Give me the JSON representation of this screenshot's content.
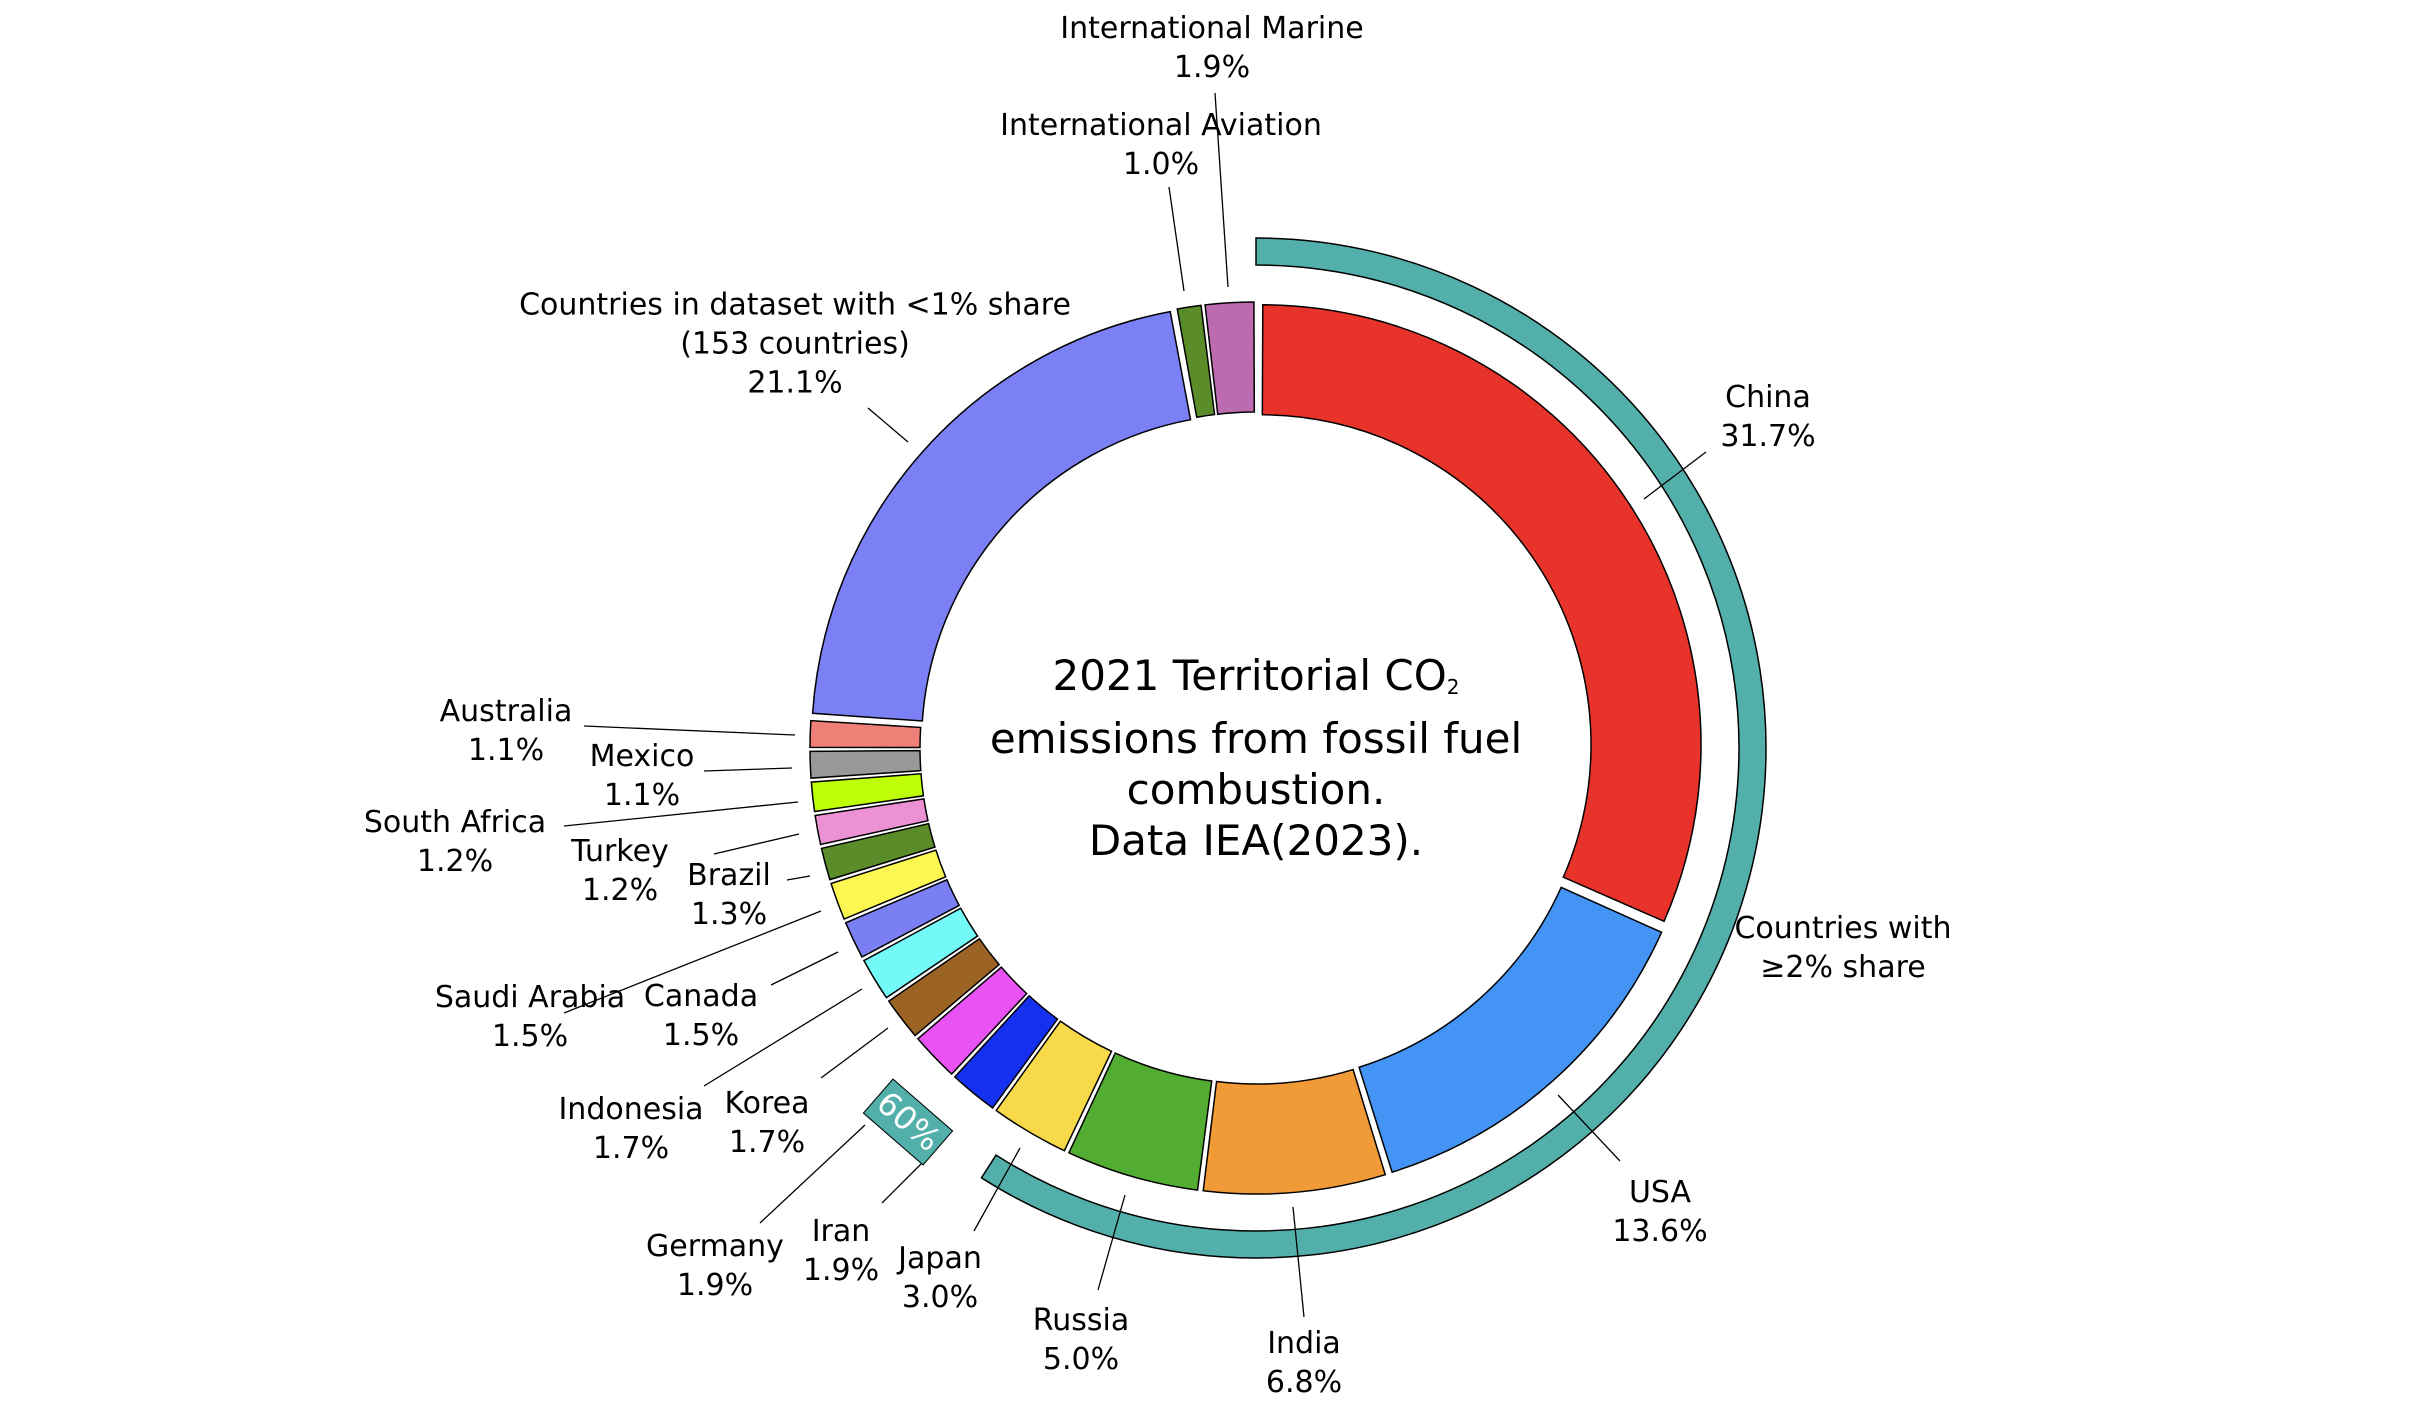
{
  "chart_data": {
    "type": "pie",
    "variant": "donut",
    "title": {
      "line1": "2021 Territorial CO",
      "sub": "2",
      "line2": "emissions from fossil fuel",
      "line3": "combustion.",
      "line4": "Data IEA(2023)."
    },
    "unit": "%",
    "slices": [
      {
        "label": [
          "China",
          "31.7%"
        ],
        "value": 31.7,
        "color": "#e8332a"
      },
      {
        "label": [
          "USA",
          "13.6%"
        ],
        "value": 13.6,
        "color": "#4394f4"
      },
      {
        "label": [
          "India",
          "6.8%"
        ],
        "value": 6.8,
        "color": "#f09a38"
      },
      {
        "label": [
          "Russia",
          "5.0%"
        ],
        "value": 5.0,
        "color": "#53ad33"
      },
      {
        "label": [
          "Japan",
          "3.0%"
        ],
        "value": 3.0,
        "color": "#f8d94a"
      },
      {
        "label": [
          "Iran",
          "1.9%"
        ],
        "value": 1.9,
        "color": "#1530ef"
      },
      {
        "label": [
          "Germany",
          "1.9%"
        ],
        "value": 1.9,
        "color": "#e953f4"
      },
      {
        "label": [
          "Korea",
          "1.7%"
        ],
        "value": 1.7,
        "color": "#9b6424"
      },
      {
        "label": [
          "Indonesia",
          "1.7%"
        ],
        "value": 1.7,
        "color": "#74f9f9"
      },
      {
        "label": [
          "Canada",
          "1.5%"
        ],
        "value": 1.5,
        "color": "#7b7ff4"
      },
      {
        "label": [
          "Saudi Arabia",
          "1.5%"
        ],
        "value": 1.5,
        "color": "#fdf851"
      },
      {
        "label": [
          "Brazil",
          "1.3%"
        ],
        "value": 1.3,
        "color": "#5a8c29"
      },
      {
        "label": [
          "Turkey",
          "1.2%"
        ],
        "value": 1.2,
        "color": "#ec91d4"
      },
      {
        "label": [
          "South Africa",
          "1.2%"
        ],
        "value": 1.2,
        "color": "#bdfe08"
      },
      {
        "label": [
          "Mexico",
          "1.1%"
        ],
        "value": 1.1,
        "color": "#999999"
      },
      {
        "label": [
          "Australia",
          "1.1%"
        ],
        "value": 1.1,
        "color": "#ef8078"
      },
      {
        "label": [
          "Countries in dataset with <1% share",
          "(153 countries)",
          "21.1%"
        ],
        "value": 21.1,
        "color": "#7b80f5"
      },
      {
        "label": [
          "International Aviation",
          "1.0%"
        ],
        "value": 1.0,
        "color": "#5a8c29"
      },
      {
        "label": [
          "International Marine",
          "1.9%"
        ],
        "value": 1.9,
        "color": "#bc6bb1"
      }
    ],
    "group_ring": {
      "label": [
        "Countries with",
        "≥2% share"
      ],
      "value": 60,
      "value_label": "60%",
      "color": "#52afaa"
    }
  }
}
